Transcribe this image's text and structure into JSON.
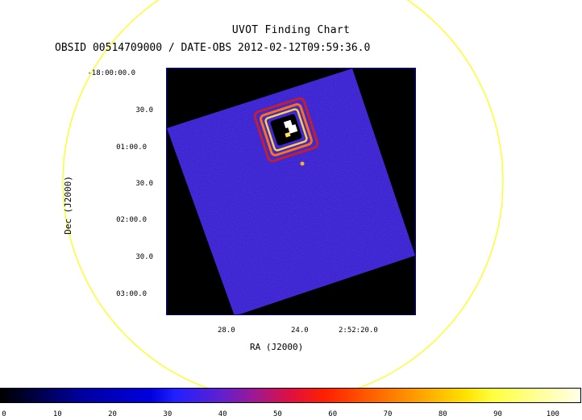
{
  "header": {
    "title": "UVOT Finding Chart",
    "subtitle": "OBSID 00514709000 / DATE-OBS 2012-02-12T09:59:36.0"
  },
  "axes": {
    "xlabel": "RA (J2000)",
    "ylabel": "Dec (J2000)",
    "dec_ticks": [
      "-18:00:00.0",
      "30.0",
      "01:00.0",
      "30.0",
      "02:00.0",
      "30.0",
      "03:00.0"
    ],
    "ra_ticks": [
      "28.0",
      "24.0",
      "2:52:20.0"
    ]
  },
  "colorbar": {
    "ticks": [
      "0",
      "10",
      "20",
      "30",
      "40",
      "50",
      "60",
      "70",
      "80",
      "90",
      "100"
    ],
    "min": 0,
    "max": 105
  },
  "colors": {
    "background_field": "#000000",
    "image_blue": "#1f1fd6",
    "circle": "#ffff00"
  }
}
